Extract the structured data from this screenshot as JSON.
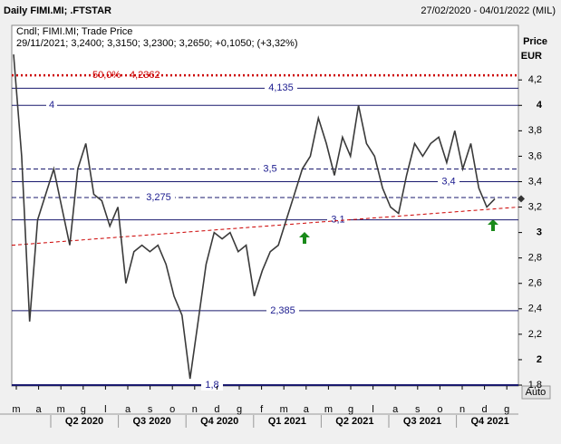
{
  "chart_data": {
    "type": "line",
    "title": "Daily FIMI.MI; .FTSTAR",
    "date_range": "27/02/2020 - 04/01/2022 (MIL)",
    "info_line1": "Cndl; FIMI.MI; Trade Price",
    "info_line2": "29/11/2021; 3,2400; 3,3150; 3,2300; 3,2650; +0,1050; (+3,32%)",
    "y_title": "Price",
    "y_unit": "EUR",
    "auto_button": "Auto",
    "color": "#3a3a3a",
    "ylim": [
      1.793,
      4.629
    ],
    "yticks": [
      {
        "value": 1.8,
        "label": "1,8"
      },
      {
        "value": 2,
        "label": "2"
      },
      {
        "value": 2.2,
        "label": "2,2"
      },
      {
        "value": 2.4,
        "label": "2,4"
      },
      {
        "value": 2.6,
        "label": "2,6"
      },
      {
        "value": 2.8,
        "label": "2,8"
      },
      {
        "value": 3,
        "label": "3"
      },
      {
        "value": 3.2,
        "label": "3,2"
      },
      {
        "value": 3.4,
        "label": "3,4"
      },
      {
        "value": 3.6,
        "label": "3,6"
      },
      {
        "value": 3.8,
        "label": "3,8"
      },
      {
        "value": 4,
        "label": "4"
      },
      {
        "value": 4.2,
        "label": "4,2"
      }
    ],
    "values": [
      4.4,
      3.6,
      2.3,
      3.1,
      3.3,
      3.5,
      3.2,
      2.9,
      3.5,
      3.7,
      3.3,
      3.25,
      3.05,
      3.2,
      2.6,
      2.85,
      2.9,
      2.85,
      2.9,
      2.75,
      2.5,
      2.35,
      1.85,
      2.3,
      2.75,
      3.0,
      2.95,
      3.0,
      2.85,
      2.9,
      2.5,
      2.7,
      2.85,
      2.9,
      3.1,
      3.3,
      3.5,
      3.6,
      3.9,
      3.7,
      3.45,
      3.75,
      3.6,
      4.0,
      3.7,
      3.6,
      3.35,
      3.2,
      3.15,
      3.45,
      3.7,
      3.6,
      3.7,
      3.75,
      3.55,
      3.8,
      3.5,
      3.7,
      3.35,
      3.2,
      3.265
    ],
    "levels": [
      {
        "value": 4.135,
        "label": "4,135"
      },
      {
        "value": 4,
        "label": "4"
      },
      {
        "value": 3.5,
        "label": "3,5"
      },
      {
        "value": 3.4,
        "label": "3,4"
      },
      {
        "value": 3.275,
        "label": "3,275"
      },
      {
        "value": 3.1,
        "label": "3,1"
      },
      {
        "value": 2.385,
        "label": "2,385"
      },
      {
        "value": 1.8,
        "label": "1,8"
      }
    ],
    "fib_level": {
      "value": 4.2362,
      "label": "4,2362",
      "ratio": "50,0%"
    },
    "trendline": [
      2.9,
      3.2
    ],
    "months": [
      "m",
      "a",
      "m",
      "g",
      "l",
      "a",
      "s",
      "o",
      "n",
      "d",
      "g",
      "f",
      "m",
      "a",
      "m",
      "g",
      "l",
      "a",
      "s",
      "o",
      "n",
      "d",
      "g"
    ],
    "quarters": [
      "Q2 2020",
      "Q3 2020",
      "Q4 2020",
      "Q1 2021",
      "Q2 2021",
      "Q3 2021",
      "Q4 2021"
    ]
  }
}
